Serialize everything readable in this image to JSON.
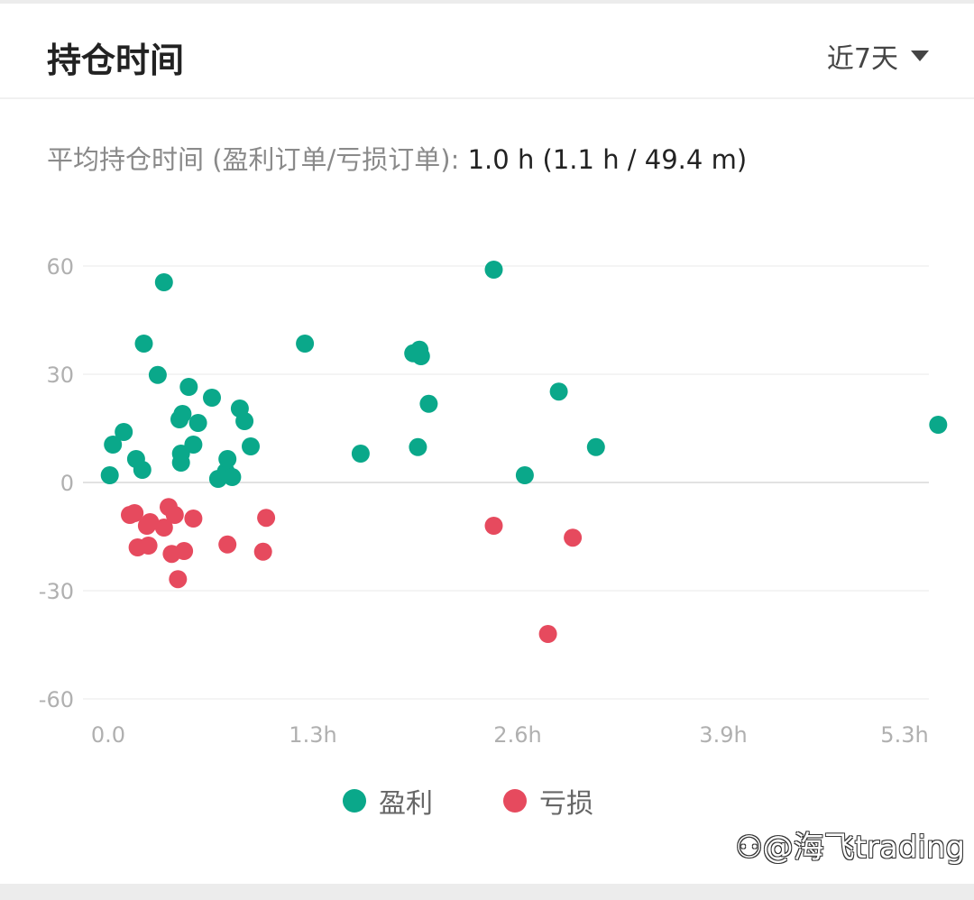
{
  "header": {
    "title": "持仓时间",
    "range": "近7天"
  },
  "summary": {
    "label": "平均持仓时间 (盈利订单/亏损订单): ",
    "value": "1.0 h (1.1 h / 49.4 m)"
  },
  "chart_data": {
    "type": "scatter",
    "x_ticks": [
      "0.0",
      "1.3h",
      "2.6h",
      "3.9h",
      "5.3h"
    ],
    "y_ticks": [
      "60",
      "30",
      "0",
      "-30",
      "-60"
    ],
    "xlim": [
      0,
      5.3
    ],
    "ylim": [
      -60,
      60
    ],
    "grid": true,
    "legend_position": "bottom",
    "series": [
      {
        "name": "盈利",
        "color": "#0aa88a",
        "points": [
          [
            0.01,
            2
          ],
          [
            0.03,
            10.5
          ],
          [
            0.1,
            14
          ],
          [
            0.18,
            6.5
          ],
          [
            0.22,
            3.5
          ],
          [
            0.23,
            38.5
          ],
          [
            0.32,
            29.8
          ],
          [
            0.36,
            55.5
          ],
          [
            0.46,
            17.5
          ],
          [
            0.47,
            8
          ],
          [
            0.47,
            5.5
          ],
          [
            0.48,
            19
          ],
          [
            0.52,
            26.5
          ],
          [
            0.55,
            10.5
          ],
          [
            0.58,
            16.5
          ],
          [
            0.67,
            23.5
          ],
          [
            0.71,
            1
          ],
          [
            0.76,
            3
          ],
          [
            0.77,
            6.5
          ],
          [
            0.8,
            1.5
          ],
          [
            0.85,
            20.5
          ],
          [
            0.88,
            17
          ],
          [
            0.92,
            10
          ],
          [
            1.27,
            38.5
          ],
          [
            1.63,
            8
          ],
          [
            1.97,
            35.8
          ],
          [
            2.01,
            36.8
          ],
          [
            2.02,
            35
          ],
          [
            2.0,
            9.8
          ],
          [
            2.07,
            21.8
          ],
          [
            2.49,
            59
          ],
          [
            2.69,
            2
          ],
          [
            2.91,
            25.2
          ],
          [
            3.15,
            9.8
          ],
          [
            5.36,
            16
          ]
        ]
      },
      {
        "name": "亏损",
        "color": "#e64a5e",
        "points": [
          [
            0.14,
            -9
          ],
          [
            0.17,
            -8.5
          ],
          [
            0.19,
            -18
          ],
          [
            0.25,
            -12
          ],
          [
            0.26,
            -17.5
          ],
          [
            0.27,
            -11
          ],
          [
            0.36,
            -12.5
          ],
          [
            0.39,
            -6.8
          ],
          [
            0.41,
            -19.8
          ],
          [
            0.43,
            -9
          ],
          [
            0.45,
            -26.8
          ],
          [
            0.49,
            -19
          ],
          [
            0.55,
            -10
          ],
          [
            0.77,
            -17.2
          ],
          [
            1.0,
            -19.2
          ],
          [
            1.02,
            -9.8
          ],
          [
            2.49,
            -12
          ],
          [
            2.84,
            -42
          ],
          [
            3.0,
            -15.3
          ]
        ]
      }
    ]
  },
  "watermark": "⚇@海飞trading"
}
